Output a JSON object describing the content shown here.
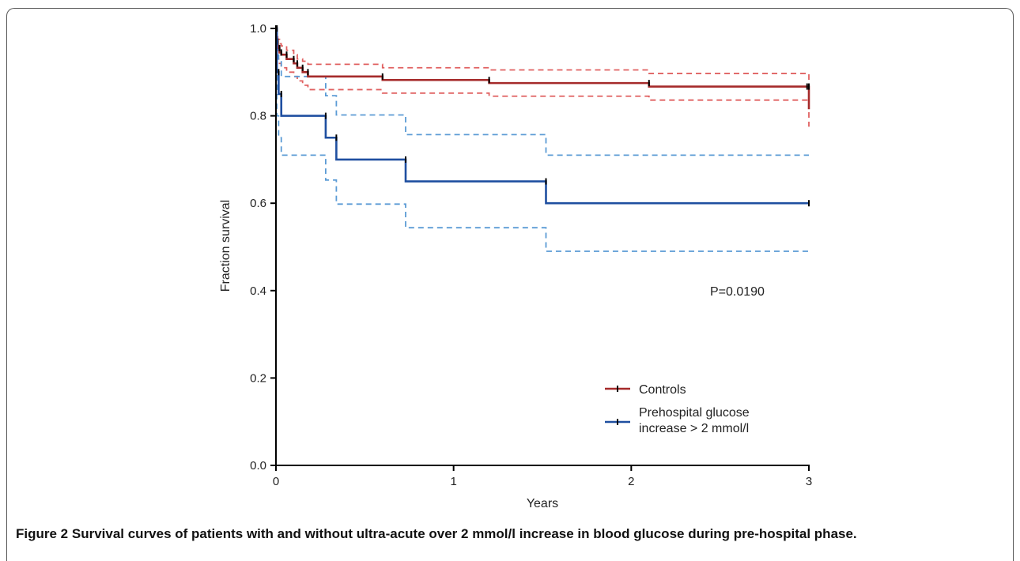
{
  "caption": {
    "label": "Figure 2",
    "text": "Survival curves of patients with and without ultra-acute over 2 mmol/l increase in blood glucose during pre-hospital phase."
  },
  "chart_data": {
    "type": "line",
    "subtype": "kaplan-meier-step",
    "title": "",
    "xlabel": "Years",
    "ylabel": "Fraction survival",
    "xlim": [
      0,
      3
    ],
    "ylim": [
      0,
      1
    ],
    "xticks": [
      "0",
      "1",
      "2",
      "3"
    ],
    "yticks": [
      "0.0",
      "0.2",
      "0.4",
      "0.6",
      "0.8",
      "1.0"
    ],
    "grid": false,
    "legend_position": "bottom-right",
    "annotation": "P=0.0190",
    "series": [
      {
        "name": "Controls",
        "color": "#a52a2a",
        "ci_color": "#e06060",
        "x": [
          0,
          0.005,
          0.01,
          0.02,
          0.03,
          0.06,
          0.1,
          0.12,
          0.15,
          0.18,
          0.6,
          1.2,
          2.1,
          2.99,
          3.0
        ],
        "y": [
          1.0,
          0.97,
          0.955,
          0.945,
          0.94,
          0.93,
          0.92,
          0.91,
          0.9,
          0.89,
          0.882,
          0.875,
          0.867,
          0.867,
          0.815
        ],
        "lower": [
          1.0,
          0.95,
          0.93,
          0.92,
          0.91,
          0.9,
          0.89,
          0.88,
          0.87,
          0.86,
          0.852,
          0.845,
          0.836,
          0.836,
          0.775
        ],
        "upper": [
          1.0,
          0.99,
          0.975,
          0.965,
          0.96,
          0.95,
          0.94,
          0.93,
          0.925,
          0.918,
          0.91,
          0.905,
          0.897,
          0.897,
          0.855
        ]
      },
      {
        "name": "Prehospital glucose increase > 2 mmol/l",
        "color": "#1f4fa0",
        "ci_color": "#5b9bd5",
        "x": [
          0,
          0.005,
          0.015,
          0.03,
          0.28,
          0.34,
          0.73,
          1.52,
          3.0
        ],
        "y": [
          1.0,
          0.9,
          0.85,
          0.8,
          0.75,
          0.7,
          0.65,
          0.6,
          0.6
        ],
        "lower": [
          1.0,
          0.8,
          0.75,
          0.71,
          0.653,
          0.598,
          0.544,
          0.49,
          0.49
        ],
        "upper": [
          1.0,
          0.97,
          0.93,
          0.89,
          0.846,
          0.802,
          0.757,
          0.71,
          0.71
        ]
      }
    ]
  }
}
